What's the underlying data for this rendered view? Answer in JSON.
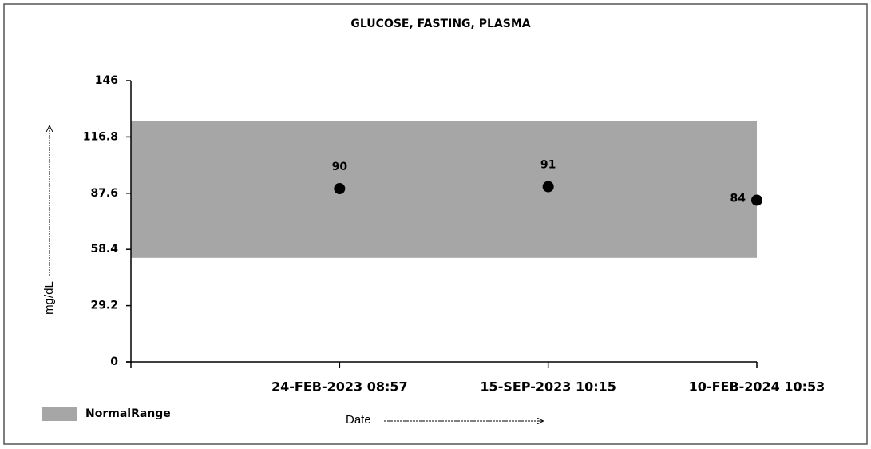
{
  "chart_data": {
    "type": "scatter",
    "title": "GLUCOSE, FASTING, PLASMA",
    "y_label": "mg/dL",
    "x_label": "Date",
    "categories": [
      "24-FEB-2023 08:57",
      "15-SEP-2023 10:15",
      "10-FEB-2024 10:53"
    ],
    "values": [
      90,
      91,
      84
    ],
    "color": "#000000",
    "ylim": [
      0,
      146
    ],
    "yticks": [
      0,
      29.2,
      58.4,
      87.6,
      116.8,
      146
    ],
    "normal_range": {
      "name": "NormalRange",
      "low": 54,
      "high": 125,
      "color": "#a6a6a6"
    }
  }
}
